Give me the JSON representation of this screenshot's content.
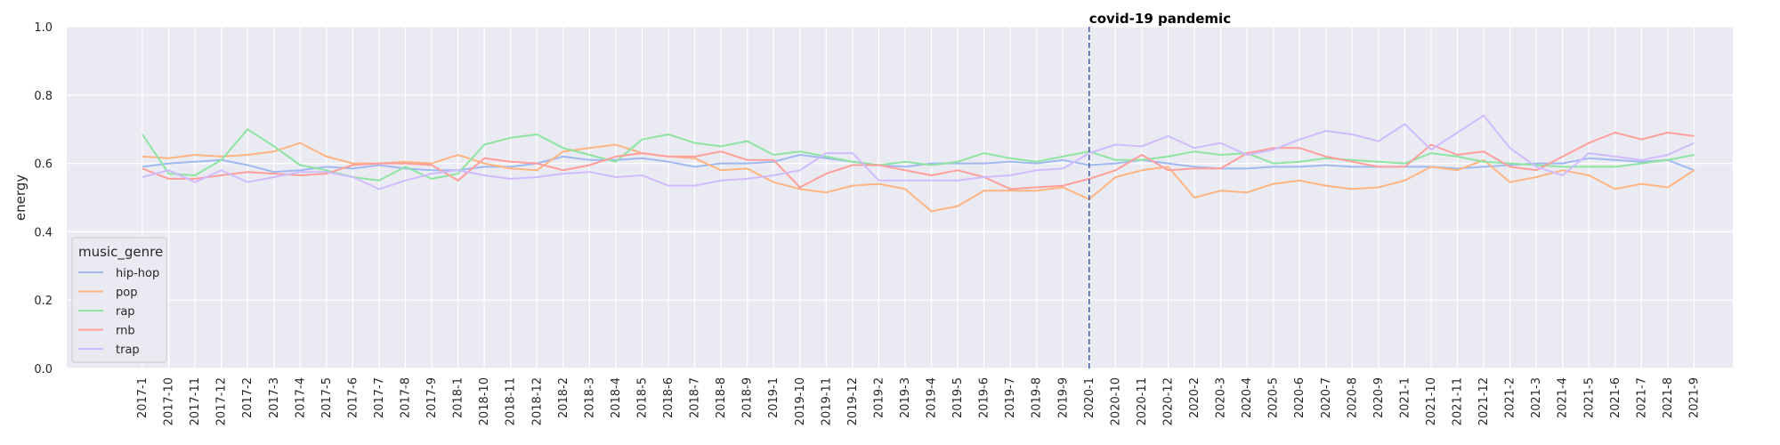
{
  "chart_data": {
    "type": "line",
    "xlabel": "",
    "ylabel": "energy",
    "ylim": [
      0.0,
      1.0
    ],
    "yticks": [
      0.0,
      0.2,
      0.4,
      0.6,
      0.8,
      1.0
    ],
    "grid": true,
    "legend_title": "music_genre",
    "legend_placement": "lower-left",
    "annotation": {
      "text": "covid-19 pandemic",
      "x": "2020-1",
      "line_color": "#3a5ba8"
    },
    "categories": [
      "2017-1",
      "2017-10",
      "2017-11",
      "2017-12",
      "2017-2",
      "2017-3",
      "2017-4",
      "2017-5",
      "2017-6",
      "2017-7",
      "2017-8",
      "2017-9",
      "2018-1",
      "2018-10",
      "2018-11",
      "2018-12",
      "2018-2",
      "2018-3",
      "2018-4",
      "2018-5",
      "2018-6",
      "2018-7",
      "2018-8",
      "2018-9",
      "2019-1",
      "2019-10",
      "2019-11",
      "2019-12",
      "2019-2",
      "2019-3",
      "2019-4",
      "2019-5",
      "2019-6",
      "2019-7",
      "2019-8",
      "2019-9",
      "2020-1",
      "2020-10",
      "2020-11",
      "2020-12",
      "2020-2",
      "2020-3",
      "2020-4",
      "2020-5",
      "2020-6",
      "2020-7",
      "2020-8",
      "2020-9",
      "2021-1",
      "2021-10",
      "2021-11",
      "2021-12",
      "2021-2",
      "2021-3",
      "2021-4",
      "2021-5",
      "2021-6",
      "2021-7",
      "2021-8",
      "2021-9"
    ],
    "series": [
      {
        "name": "hip-hop",
        "color": "#a1b9f0",
        "values": [
          0.59,
          0.6,
          0.605,
          0.61,
          0.595,
          0.575,
          0.58,
          0.59,
          0.585,
          0.595,
          0.585,
          0.58,
          0.58,
          0.59,
          0.59,
          0.6,
          0.62,
          0.61,
          0.61,
          0.615,
          0.605,
          0.59,
          0.6,
          0.6,
          0.605,
          0.625,
          0.615,
          0.605,
          0.595,
          0.59,
          0.6,
          0.6,
          0.6,
          0.605,
          0.6,
          0.61,
          0.595,
          0.6,
          0.61,
          0.6,
          0.59,
          0.585,
          0.585,
          0.59,
          0.59,
          0.595,
          0.59,
          0.59,
          0.59,
          0.59,
          0.585,
          0.59,
          0.595,
          0.6,
          0.6,
          0.615,
          0.61,
          0.605,
          0.61,
          0.58
        ]
      },
      {
        "name": "pop",
        "color": "#ffb482",
        "values": [
          0.62,
          0.615,
          0.625,
          0.62,
          0.625,
          0.635,
          0.66,
          0.62,
          0.6,
          0.6,
          0.605,
          0.6,
          0.625,
          0.6,
          0.585,
          0.58,
          0.635,
          0.645,
          0.655,
          0.63,
          0.62,
          0.615,
          0.58,
          0.585,
          0.545,
          0.525,
          0.515,
          0.535,
          0.54,
          0.525,
          0.46,
          0.475,
          0.52,
          0.52,
          0.52,
          0.53,
          0.495,
          0.56,
          0.58,
          0.59,
          0.5,
          0.52,
          0.515,
          0.54,
          0.55,
          0.535,
          0.525,
          0.53,
          0.55,
          0.59,
          0.58,
          0.61,
          0.545,
          0.56,
          0.58,
          0.565,
          0.525,
          0.54,
          0.53,
          0.58
        ]
      },
      {
        "name": "rap",
        "color": "#8de5a1",
        "values": [
          0.685,
          0.57,
          0.565,
          0.61,
          0.7,
          0.65,
          0.595,
          0.58,
          0.56,
          0.55,
          0.59,
          0.555,
          0.57,
          0.655,
          0.675,
          0.685,
          0.645,
          0.625,
          0.605,
          0.67,
          0.685,
          0.66,
          0.65,
          0.665,
          0.625,
          0.635,
          0.62,
          0.605,
          0.595,
          0.605,
          0.595,
          0.605,
          0.63,
          0.615,
          0.605,
          0.62,
          0.635,
          0.61,
          0.61,
          0.62,
          0.635,
          0.625,
          0.63,
          0.6,
          0.605,
          0.615,
          0.61,
          0.605,
          0.6,
          0.63,
          0.62,
          0.605,
          0.6,
          0.595,
          0.59,
          0.59,
          0.59,
          0.6,
          0.61,
          0.625
        ]
      },
      {
        "name": "rnb",
        "color": "#ff9f9b",
        "values": [
          0.585,
          0.555,
          0.555,
          0.565,
          0.575,
          0.57,
          0.565,
          0.57,
          0.595,
          0.6,
          0.6,
          0.595,
          0.55,
          0.615,
          0.605,
          0.6,
          0.58,
          0.595,
          0.62,
          0.63,
          0.62,
          0.62,
          0.635,
          0.61,
          0.61,
          0.53,
          0.57,
          0.595,
          0.595,
          0.58,
          0.565,
          0.58,
          0.56,
          0.525,
          0.53,
          0.535,
          0.555,
          0.58,
          0.625,
          0.58,
          0.585,
          0.585,
          0.63,
          0.645,
          0.645,
          0.62,
          0.605,
          0.59,
          0.59,
          0.655,
          0.625,
          0.635,
          0.59,
          0.58,
          0.62,
          0.66,
          0.69,
          0.67,
          0.69,
          0.68
        ]
      },
      {
        "name": "trap",
        "color": "#d0bbff",
        "values": [
          0.56,
          0.58,
          0.545,
          0.58,
          0.545,
          0.56,
          0.575,
          0.575,
          0.56,
          0.525,
          0.55,
          0.57,
          0.58,
          0.565,
          0.555,
          0.56,
          0.57,
          0.575,
          0.56,
          0.565,
          0.535,
          0.535,
          0.55,
          0.555,
          0.565,
          0.58,
          0.63,
          0.63,
          0.55,
          0.55,
          0.55,
          0.55,
          0.56,
          0.565,
          0.58,
          0.585,
          0.63,
          0.655,
          0.65,
          0.68,
          0.645,
          0.66,
          0.625,
          0.64,
          0.67,
          0.695,
          0.685,
          0.665,
          0.715,
          0.64,
          0.69,
          0.74,
          0.645,
          0.59,
          0.565,
          0.63,
          0.62,
          0.61,
          0.625,
          0.66
        ]
      }
    ]
  }
}
